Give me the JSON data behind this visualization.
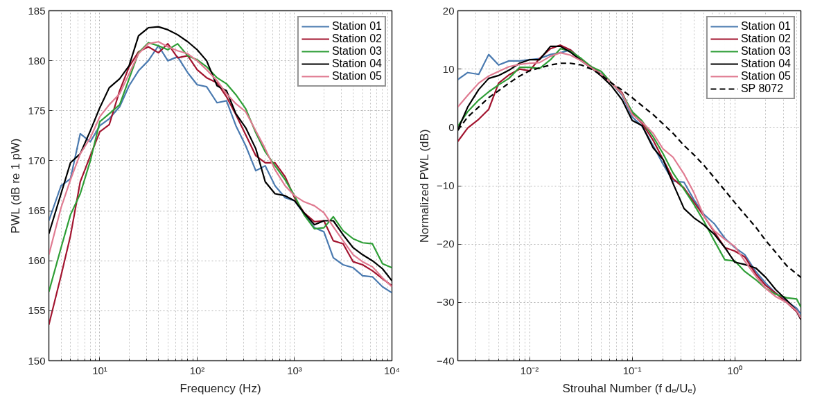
{
  "chart_data": [
    {
      "type": "line",
      "xlabel": "Frequency (Hz)",
      "ylabel": "PWL (dB re 1 pW)",
      "log": "x",
      "grid": true,
      "legend": "top right",
      "marker": "none",
      "xlim": [
        3,
        10000
      ],
      "ylim": [
        150,
        185
      ],
      "xticks": [
        {
          "value": 10,
          "label": "10¹"
        },
        {
          "value": 100,
          "label": "10²"
        },
        {
          "value": 1000,
          "label": "10³"
        },
        {
          "value": 10000,
          "label": "10⁴"
        }
      ],
      "yticks": [
        150,
        155,
        160,
        165,
        170,
        175,
        180,
        185
      ],
      "x": [
        3,
        4,
        5,
        6.3,
        8,
        10,
        12.5,
        16,
        20,
        25,
        31.5,
        40,
        50,
        63,
        80,
        100,
        125,
        160,
        200,
        250,
        315,
        400,
        500,
        630,
        800,
        1000,
        1250,
        1600,
        2000,
        2500,
        3150,
        4000,
        5000,
        6300,
        8000,
        10000
      ],
      "series": [
        {
          "name": "Station 01",
          "color": "#4a7ab0",
          "line_style": "solid",
          "values": [
            164,
            167.5,
            168.2,
            172.7,
            171.9,
            173.5,
            174.2,
            175.4,
            177.5,
            179,
            180,
            181.5,
            180,
            180.4,
            178.8,
            177.6,
            177.4,
            175.8,
            176,
            173.5,
            171.5,
            169,
            169.5,
            167.5,
            166.3,
            166,
            164.7,
            163.3,
            162.9,
            160.3,
            159.6,
            159.3,
            158.5,
            158.4,
            157.4,
            156.8
          ]
        },
        {
          "name": "Station 02",
          "color": "#a2142f",
          "line_style": "solid",
          "values": [
            153.6,
            158.5,
            162.5,
            167.9,
            170.5,
            172.9,
            173.6,
            177,
            179.4,
            180.9,
            181.4,
            180.8,
            181.7,
            180.3,
            180.5,
            179.1,
            178.3,
            177.8,
            176.4,
            174.6,
            172.6,
            170.5,
            169.8,
            169.8,
            168.4,
            166.3,
            164.8,
            163.9,
            164,
            162,
            161.7,
            159.9,
            159.6,
            159,
            158.2,
            157.5
          ]
        },
        {
          "name": "Station 03",
          "color": "#2e9e36",
          "line_style": "solid",
          "values": [
            156.9,
            161.3,
            164.6,
            166.7,
            170,
            173.9,
            174.7,
            175.6,
            178.2,
            180.8,
            181.8,
            181.5,
            181.1,
            181.7,
            180.5,
            180.1,
            179.4,
            178.3,
            177.7,
            176.6,
            175.2,
            172.8,
            170.9,
            169.5,
            168.1,
            166.5,
            164.6,
            163.2,
            163.3,
            164.4,
            163,
            162.2,
            161.8,
            161.7,
            159.7,
            159.3
          ]
        },
        {
          "name": "Station 04",
          "color": "#000000",
          "line_style": "solid",
          "values": [
            162.7,
            166.7,
            169.8,
            170.7,
            173,
            175.3,
            177.3,
            178.2,
            179.5,
            182.5,
            183.3,
            183.4,
            183.1,
            182.6,
            181.9,
            181.1,
            180,
            177.5,
            177,
            174.7,
            173.3,
            171.2,
            167.9,
            166.7,
            166.5,
            166,
            164.8,
            163.6,
            164,
            164,
            162.6,
            161.3,
            160.6,
            160,
            159.2,
            158
          ]
        },
        {
          "name": "Station 05",
          "color": "#e07b91",
          "line_style": "solid",
          "values": [
            160.6,
            165.3,
            168.1,
            170.7,
            172.3,
            174.4,
            175.6,
            176.7,
            178.7,
            180.7,
            181.7,
            181.9,
            181.4,
            181,
            180.7,
            180,
            179.1,
            178,
            176.7,
            175.7,
            174.9,
            173,
            171.2,
            169.1,
            167.5,
            166.5,
            165.9,
            165.5,
            164.8,
            163.4,
            162,
            160.6,
            159.9,
            159.4,
            158.3,
            157.4
          ]
        }
      ]
    },
    {
      "type": "line",
      "xlabel": "Strouhal Number (f dₑ/Uₑ)",
      "ylabel": "Normalized PWL (dB)",
      "log": "x",
      "grid": true,
      "legend": "top right",
      "marker": "none",
      "xlim": [
        0.002,
        4.4
      ],
      "ylim": [
        -40,
        20
      ],
      "xticks": [
        {
          "value": 0.01,
          "label": "10⁻²"
        },
        {
          "value": 0.1,
          "label": "10⁻¹"
        },
        {
          "value": 1,
          "label": "10⁰"
        }
      ],
      "yticks": [
        -40,
        -30,
        -20,
        -10,
        0,
        10,
        20
      ],
      "x": [
        0.002,
        0.0025,
        0.0032,
        0.004,
        0.005,
        0.0063,
        0.008,
        0.01,
        0.0125,
        0.016,
        0.02,
        0.025,
        0.032,
        0.04,
        0.05,
        0.063,
        0.08,
        0.1,
        0.125,
        0.16,
        0.2,
        0.25,
        0.32,
        0.4,
        0.5,
        0.63,
        0.8,
        1,
        1.25,
        1.6,
        2,
        2.5,
        3.2,
        4,
        4.4
      ],
      "series": [
        {
          "name": "Station 01",
          "color": "#4a7ab0",
          "line_style": "solid",
          "values": [
            8.2,
            9.4,
            9.1,
            12.5,
            10.7,
            11.4,
            11.4,
            11.6,
            11.8,
            12.5,
            12.8,
            13.3,
            11.6,
            10.2,
            9.2,
            7.6,
            5.5,
            1.8,
            0.2,
            -3.1,
            -6.3,
            -9.2,
            -9.4,
            -12.4,
            -14.9,
            -16.5,
            -19,
            -20.6,
            -21.8,
            -24.7,
            -26.7,
            -28.4,
            -29.8,
            -31,
            -32
          ]
        },
        {
          "name": "Station 02",
          "color": "#a2142f",
          "line_style": "solid",
          "values": [
            -2.4,
            -0.1,
            1.4,
            3.1,
            7.6,
            9,
            10,
            9.7,
            11.8,
            13.5,
            14.1,
            13.3,
            11.6,
            10.4,
            9.1,
            7.6,
            5.9,
            2.4,
            0.7,
            -2.2,
            -5.5,
            -8.8,
            -10.4,
            -12.8,
            -15.2,
            -17.9,
            -20.6,
            -21.2,
            -22.2,
            -25.1,
            -27.1,
            -28.4,
            -30,
            -31.6,
            -32.9
          ]
        },
        {
          "name": "Station 03",
          "color": "#2e9e36",
          "line_style": "solid",
          "values": [
            0.2,
            2.7,
            4.7,
            6.1,
            7.3,
            8.4,
            10.3,
            10.3,
            10.1,
            11.6,
            13.5,
            13.1,
            11.8,
            10.4,
            9.6,
            7.6,
            5.7,
            2.7,
            1.1,
            -1.6,
            -4.5,
            -7.8,
            -10.6,
            -13.2,
            -16.1,
            -19.4,
            -22.7,
            -22.9,
            -24.7,
            -26.1,
            -27.6,
            -28.6,
            -29.2,
            -29.4,
            -30.8
          ]
        },
        {
          "name": "Station 04",
          "color": "#000000",
          "line_style": "solid",
          "values": [
            -0.4,
            3.5,
            6.5,
            8.4,
            8.9,
            9.8,
            11,
            11.6,
            11.6,
            13.9,
            13.9,
            12.9,
            11.4,
            10.2,
            8.8,
            7.1,
            4.7,
            1.2,
            0.3,
            -3.5,
            -5.5,
            -9.6,
            -13.9,
            -15.5,
            -16.7,
            -18.3,
            -20.6,
            -23.1,
            -23.5,
            -24.1,
            -25.7,
            -27.8,
            -29.6,
            -31.4,
            -32.9
          ]
        },
        {
          "name": "Station 05",
          "color": "#e07b91",
          "line_style": "solid",
          "values": [
            3.5,
            5.5,
            7.6,
            8.8,
            9.6,
            10.4,
            10.8,
            11,
            11.1,
            12.2,
            12.8,
            12.4,
            11.4,
            10.2,
            9.1,
            7.6,
            5.7,
            2.2,
            0.9,
            -1,
            -3.7,
            -5.1,
            -8,
            -11.2,
            -15.2,
            -17.7,
            -19.2,
            -20.4,
            -22.9,
            -25.5,
            -27.6,
            -29,
            -30,
            -31.4,
            -32.7
          ]
        },
        {
          "name": "SP 8072",
          "color": "#000000",
          "line_style": "dashed",
          "values": [
            -0.5,
            1.8,
            3.5,
            5.1,
            6.3,
            7.6,
            8.8,
            9.7,
            10.2,
            10.7,
            11,
            11,
            10.7,
            10,
            9,
            7.6,
            6.4,
            5.1,
            3.7,
            2.2,
            0.6,
            -1,
            -3.1,
            -4.7,
            -6.5,
            -8.6,
            -10.8,
            -12.9,
            -14.9,
            -17.1,
            -19.4,
            -21.4,
            -23.7,
            -25.1,
            -25.7
          ]
        }
      ]
    }
  ]
}
